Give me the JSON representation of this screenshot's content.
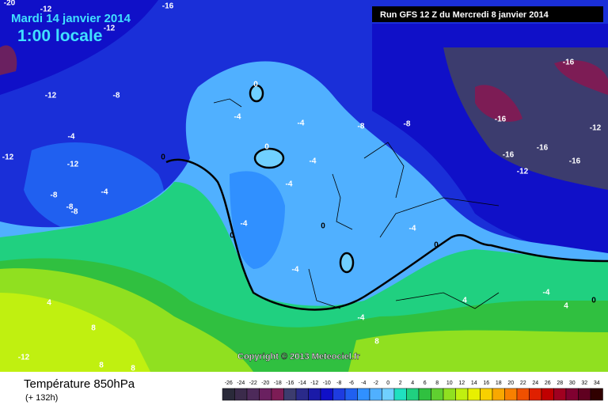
{
  "header": {
    "date": "Mardi 14 janvier 2014",
    "time": "1:00 locale",
    "run": "Run GFS 12 Z du Mercredi 8 janvier 2014"
  },
  "map": {
    "copyright": "Copyright © 2013 Meteociel.fr",
    "contour_labels": [
      "-20",
      "-16",
      "-12",
      "-12",
      "-12",
      "-8",
      "-12",
      "-4",
      "-12",
      "-8",
      "-4",
      "-8",
      "-8",
      "-4",
      "-4",
      "0",
      "0",
      "-4",
      "-4",
      "-8",
      "-8",
      "-16",
      "-16",
      "-16",
      "-12",
      "-12",
      "-16",
      "-16",
      "-4",
      "0",
      "0",
      "-4",
      "-4",
      "0",
      "-4",
      "4",
      "4",
      "0",
      "8",
      "-4",
      "4",
      "8",
      "-12",
      "8",
      "8",
      "0",
      "0"
    ]
  },
  "footer": {
    "variable": "Température 850hPa",
    "lead": "(+ 132h)"
  },
  "legend": {
    "labels": [
      -26,
      -24,
      -22,
      -20,
      -18,
      -16,
      -14,
      -12,
      -10,
      -8,
      -6,
      -4,
      -2,
      0,
      2,
      4,
      6,
      8,
      10,
      12,
      14,
      16,
      18,
      20,
      22,
      24,
      26,
      28,
      30,
      32,
      34
    ],
    "colors": [
      "#2a2a3a",
      "#3b2b4b",
      "#4d2a5a",
      "#6a2060",
      "#7d1c55",
      "#3c3c6e",
      "#2a2a8a",
      "#1a1aa8",
      "#1010c8",
      "#1e3ce0",
      "#2060f0",
      "#3090ff",
      "#50b0ff",
      "#70d0ff",
      "#20e0c0",
      "#20d080",
      "#30c040",
      "#60d030",
      "#90e020",
      "#c0f010",
      "#e8f000",
      "#f8d000",
      "#f8a800",
      "#f88000",
      "#f05000",
      "#e02000",
      "#c00000",
      "#a00020",
      "#800030",
      "#600020",
      "#300000"
    ]
  }
}
